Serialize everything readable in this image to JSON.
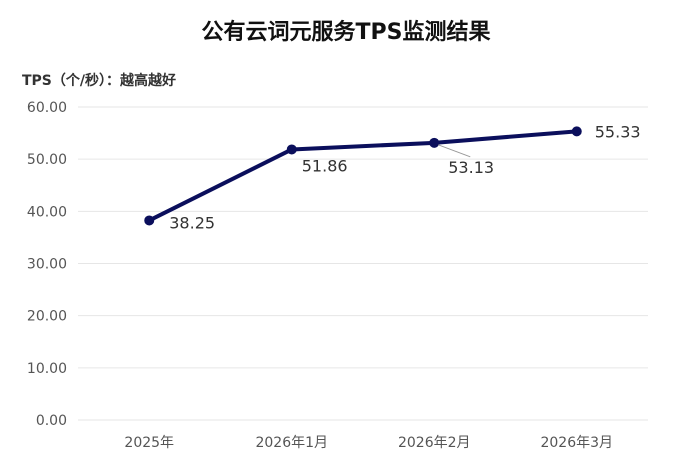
{
  "chart_data": {
    "type": "line",
    "title": "公有云词元服务TPS监测结果",
    "ylabel": "TPS（个/秒）：越高越好",
    "xlabel": "",
    "categories": [
      "2025年",
      "2026年1月",
      "2026年2月",
      "2026年3月"
    ],
    "series": [
      {
        "values": [
          38.25,
          51.86,
          53.13,
          55.33
        ],
        "labels": [
          "38.25",
          "51.86",
          "53.13",
          "55.33"
        ]
      }
    ],
    "ylim": [
      0,
      60
    ],
    "yticks": [
      "0.00",
      "10.00",
      "20.00",
      "30.00",
      "40.00",
      "50.00",
      "60.00"
    ],
    "grid": true,
    "legend": "none",
    "colors": {
      "line": "#0b0f5c",
      "grid": "#e6e6e6",
      "leader": "#999999"
    }
  }
}
